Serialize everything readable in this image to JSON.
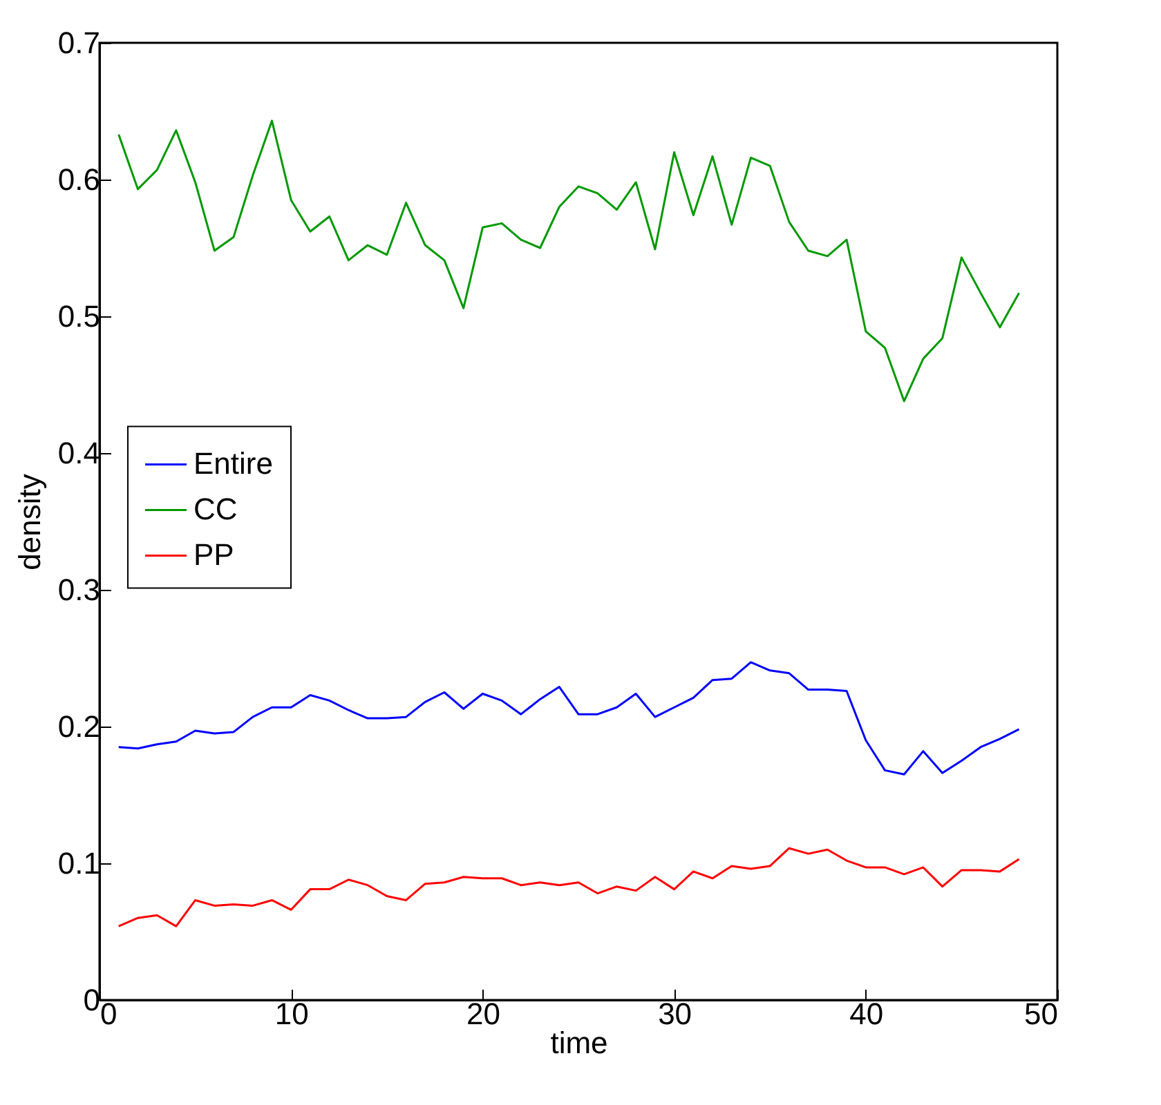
{
  "chart_data": {
    "type": "line",
    "xlabel": "time",
    "ylabel": "density",
    "x": [
      1,
      2,
      3,
      4,
      5,
      6,
      7,
      8,
      9,
      10,
      11,
      12,
      13,
      14,
      15,
      16,
      17,
      18,
      19,
      20,
      21,
      22,
      23,
      24,
      25,
      26,
      27,
      28,
      29,
      30,
      31,
      32,
      33,
      34,
      35,
      36,
      37,
      38,
      39,
      40,
      41,
      42,
      43,
      44,
      45,
      46,
      47,
      48
    ],
    "series": [
      {
        "name": "Entire",
        "color": "#0000ff",
        "values": [
          0.185,
          0.184,
          0.187,
          0.189,
          0.197,
          0.195,
          0.196,
          0.207,
          0.214,
          0.214,
          0.223,
          0.219,
          0.212,
          0.206,
          0.206,
          0.207,
          0.218,
          0.225,
          0.213,
          0.224,
          0.219,
          0.209,
          0.22,
          0.229,
          0.209,
          0.209,
          0.214,
          0.224,
          0.207,
          0.214,
          0.221,
          0.234,
          0.235,
          0.247,
          0.241,
          0.239,
          0.227,
          0.227,
          0.226,
          0.19,
          0.168,
          0.165,
          0.182,
          0.166,
          0.175,
          0.185,
          0.191,
          0.198
        ]
      },
      {
        "name": "CC",
        "color": "#009900",
        "values": [
          0.633,
          0.593,
          0.607,
          0.636,
          0.598,
          0.548,
          0.558,
          0.603,
          0.643,
          0.585,
          0.562,
          0.573,
          0.541,
          0.552,
          0.545,
          0.583,
          0.552,
          0.541,
          0.506,
          0.565,
          0.568,
          0.556,
          0.55,
          0.58,
          0.595,
          0.59,
          0.578,
          0.598,
          0.549,
          0.62,
          0.574,
          0.617,
          0.567,
          0.616,
          0.61,
          0.569,
          0.548,
          0.544,
          0.556,
          0.489,
          0.477,
          0.438,
          0.469,
          0.484,
          0.543,
          0.517,
          0.492,
          0.517
        ]
      },
      {
        "name": "PP",
        "color": "#ff0000",
        "values": [
          0.054,
          0.06,
          0.062,
          0.054,
          0.073,
          0.069,
          0.07,
          0.069,
          0.073,
          0.066,
          0.081,
          0.081,
          0.088,
          0.084,
          0.076,
          0.073,
          0.085,
          0.086,
          0.09,
          0.089,
          0.089,
          0.084,
          0.086,
          0.084,
          0.086,
          0.078,
          0.083,
          0.08,
          0.09,
          0.081,
          0.094,
          0.089,
          0.098,
          0.096,
          0.098,
          0.111,
          0.107,
          0.11,
          0.102,
          0.097,
          0.097,
          0.092,
          0.097,
          0.083,
          0.095,
          0.095,
          0.094,
          0.103
        ]
      }
    ],
    "xlim": [
      0,
      50
    ],
    "xticks": [
      0,
      10,
      20,
      30,
      40,
      50
    ],
    "ylim": [
      0,
      0.7
    ],
    "yticks": [
      0,
      0.1,
      0.2,
      0.3,
      0.4,
      0.5,
      0.6,
      0.7
    ],
    "legend": "left",
    "grid": false,
    "line_style": "solid"
  }
}
